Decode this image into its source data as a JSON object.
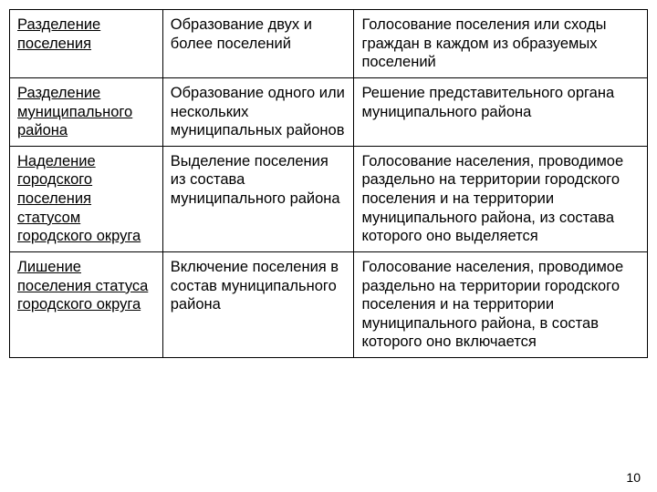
{
  "table": {
    "columns": [
      "col1",
      "col2",
      "col3"
    ],
    "column_widths": [
      "24%",
      "30%",
      "46%"
    ],
    "border_color": "#000000",
    "background_color": "#ffffff",
    "font_family": "Arial",
    "font_size": 16.5,
    "rows": [
      {
        "c1": "Разделение поселения",
        "c1_underline": true,
        "c2": "Образование двух и более поселений",
        "c3": "Голосование поселения или сходы граждан в каждом из образуемых поселений"
      },
      {
        "c1": "Разделение муниципального района",
        "c1_underline": true,
        "c2": "Образование одного или нескольких муниципальных районов",
        "c3": "Решение представительного органа муниципального района"
      },
      {
        "c1": "Наделение городского поселения статусом городского округа",
        "c1_underline": true,
        "c2": "Выделение поселения из состава муниципального района",
        "c3": "Голосование населения, проводимое раздельно на территории городского поселения и на территории муниципального района, из состава которого оно выделяется"
      },
      {
        "c1": "Лишение поселения статуса городского округа",
        "c1_underline": true,
        "c2": "Включение поселения в состав муниципального района",
        "c3": "Голосование населения, проводимое раздельно на территории городского поселения и на территории муниципального района, в состав которого оно включается"
      }
    ]
  },
  "page_number": "10"
}
